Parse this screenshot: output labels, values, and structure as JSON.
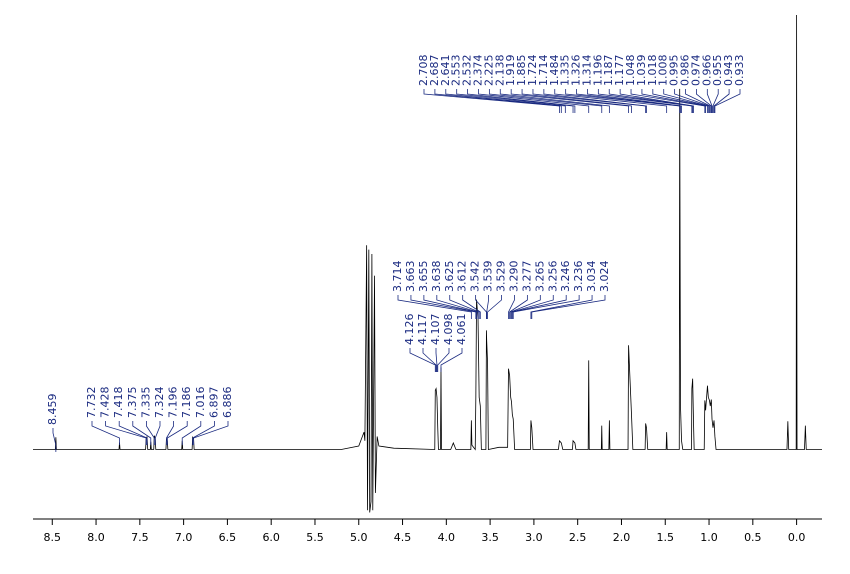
{
  "chart_data": {
    "type": "line",
    "color": "#000000",
    "label_color": "#1a2a80",
    "xlim": [
      8.72,
      -0.29
    ],
    "ylim": [
      -16,
      100
    ],
    "xticks": [
      8.5,
      {
        "value": 8,
        "label": "8.0"
      },
      7.5,
      {
        "value": 7,
        "label": "7.0"
      },
      6.5,
      {
        "value": 6,
        "label": "6.0"
      },
      5.5,
      {
        "value": 5,
        "label": "5.0"
      },
      4.5,
      {
        "value": 4,
        "label": "4.0"
      },
      3.5,
      {
        "value": 3,
        "label": "3.0"
      },
      2.5,
      {
        "value": 2,
        "label": "2.0"
      },
      1.5,
      {
        "value": 1,
        "label": "1.0"
      },
      0.5,
      {
        "value": 0,
        "label": "0.0"
      }
    ],
    "x": [
      8.72,
      8.465,
      8.459,
      8.453,
      7.738,
      7.732,
      7.726,
      7.434,
      7.428,
      7.418,
      7.41,
      7.38,
      7.375,
      7.369,
      7.341,
      7.335,
      7.324,
      7.318,
      7.202,
      7.196,
      7.186,
      7.18,
      7.022,
      7.016,
      7.01,
      6.903,
      6.897,
      6.886,
      6.88,
      5.2,
      5.0,
      4.94,
      4.93,
      4.91,
      4.9,
      4.885,
      4.875,
      4.86,
      4.85,
      4.84,
      4.82,
      4.81,
      4.79,
      4.77,
      4.6,
      4.132,
      4.126,
      4.117,
      4.107,
      4.098,
      4.09,
      4.067,
      4.061,
      4.055,
      3.95,
      3.92,
      3.89,
      3.72,
      3.714,
      3.708,
      3.67,
      3.663,
      3.655,
      3.638,
      3.625,
      3.612,
      3.6,
      3.548,
      3.542,
      3.539,
      3.529,
      3.52,
      3.4,
      3.3,
      3.29,
      3.277,
      3.265,
      3.256,
      3.246,
      3.236,
      3.22,
      3.04,
      3.034,
      3.024,
      3.01,
      2.72,
      2.708,
      2.687,
      2.67,
      2.56,
      2.553,
      2.532,
      2.52,
      2.38,
      2.374,
      2.368,
      2.23,
      2.225,
      2.22,
      2.144,
      2.138,
      2.132,
      1.925,
      1.919,
      1.885,
      1.87,
      1.73,
      1.724,
      1.714,
      1.7,
      1.49,
      1.484,
      1.478,
      1.34,
      1.335,
      1.326,
      1.314,
      1.3,
      1.2,
      1.196,
      1.187,
      1.177,
      1.17,
      1.055,
      1.048,
      1.039,
      1.018,
      1.008,
      0.995,
      0.986,
      0.974,
      0.966,
      0.955,
      0.943,
      0.933,
      0.92,
      0.11,
      0.1,
      0.09,
      0.005,
      0,
      -0.005,
      -0.09,
      -0.1,
      -0.11,
      -0.29
    ],
    "values": [
      0,
      0,
      2.8,
      0,
      0,
      1.6,
      0,
      0,
      2.4,
      3,
      0,
      0,
      1.8,
      0,
      0,
      3.2,
      2.5,
      0,
      0,
      2.5,
      2,
      0,
      0,
      2,
      0,
      0,
      2.8,
      2.4,
      0,
      0,
      0.8,
      4,
      2,
      47,
      -14,
      46,
      -14.5,
      -12,
      45,
      -14,
      40,
      -10,
      3,
      0.8,
      0.3,
      0,
      13.6,
      14,
      12,
      5,
      0,
      0,
      18.9,
      0,
      0,
      1.5,
      0,
      0,
      6.7,
      1,
      0,
      12,
      34.5,
      30,
      12,
      10,
      0,
      0,
      27.4,
      25,
      20,
      0,
      0.5,
      0.5,
      18.6,
      17,
      12,
      11,
      8,
      7,
      0,
      0,
      6.7,
      5,
      0,
      0,
      2,
      1.5,
      0,
      0,
      2,
      1.5,
      0,
      0,
      20.5,
      0,
      0,
      5.5,
      0,
      0,
      6.7,
      0,
      0,
      24,
      7.8,
      0,
      0,
      6,
      5,
      0,
      0,
      4,
      0,
      0,
      83,
      10,
      2,
      0,
      0,
      14,
      16.3,
      6,
      0,
      0,
      11.3,
      9,
      14.7,
      12,
      11.3,
      10,
      11.5,
      7,
      5,
      6.7,
      3,
      0,
      0,
      6.5,
      0,
      0,
      100,
      0,
      0,
      5.5,
      0,
      0
    ],
    "peak_labels": [
      [
        8.459
      ],
      [
        7.732,
        7.428,
        7.418,
        7.375,
        7.335,
        7.324,
        7.196,
        7.186,
        7.016,
        6.897,
        6.886
      ],
      [
        4.126,
        4.117,
        4.107,
        4.098,
        4.061
      ],
      [
        3.714,
        3.663,
        3.655,
        3.638,
        3.625,
        3.612,
        3.542,
        3.539,
        3.529,
        {
          "value": 3.29,
          "label": "3.290"
        },
        3.277,
        3.265,
        3.256,
        3.246,
        3.236,
        3.034,
        3.024
      ],
      [
        2.708,
        2.687,
        2.641,
        2.553,
        2.532,
        2.374,
        2.225,
        2.138,
        1.919,
        1.885,
        1.724,
        1.714,
        1.484,
        1.335,
        1.326,
        1.314,
        1.196,
        1.187,
        1.177,
        1.048,
        1.039,
        1.018,
        1.008,
        0.995,
        0.986,
        0.974,
        0.966,
        0.955,
        0.943,
        0.933
      ]
    ]
  }
}
